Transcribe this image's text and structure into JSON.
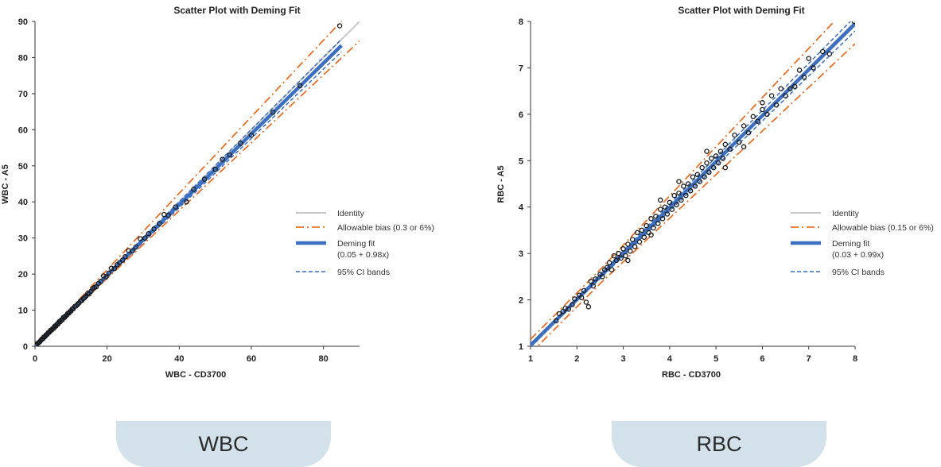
{
  "chart_data": [
    {
      "type": "scatter",
      "title": "Scatter Plot with Deming Fit",
      "xlabel": "WBC   - CD3700",
      "ylabel": "WBC   - A5",
      "xlim": [
        0,
        90
      ],
      "ylim": [
        0,
        90
      ],
      "xticks": [
        0,
        20,
        40,
        60,
        80
      ],
      "yticks": [
        0,
        10,
        20,
        30,
        40,
        50,
        60,
        70,
        80,
        90
      ],
      "grid": false,
      "legend_position": "right",
      "legend": [
        {
          "label": "Identity",
          "style": "solid",
          "color": "#c8c8c8"
        },
        {
          "label": "Allowable bias (0.3 or 6%)",
          "style": "dashdot",
          "color": "#e8702a"
        },
        {
          "label": "Deming fit",
          "label2": "(0.05 + 0.98x)",
          "style": "thick",
          "color": "#3d6fc0"
        },
        {
          "label": "95% CI bands",
          "style": "dashed",
          "color": "#3d6fc0"
        }
      ],
      "deming": {
        "intercept": 0.05,
        "slope": 0.98,
        "x_range": [
          0,
          85
        ]
      },
      "allowable_bias": {
        "abs": 0.3,
        "pct": 0.06
      },
      "points": [
        [
          0.4,
          0.3
        ],
        [
          0.7,
          0.8
        ],
        [
          1.0,
          1.0
        ],
        [
          1.3,
          1.2
        ],
        [
          1.6,
          1.6
        ],
        [
          1.9,
          2.0
        ],
        [
          2.2,
          2.1
        ],
        [
          2.5,
          2.6
        ],
        [
          2.8,
          2.7
        ],
        [
          3.1,
          3.2
        ],
        [
          3.4,
          3.3
        ],
        [
          3.7,
          3.8
        ],
        [
          4.0,
          3.9
        ],
        [
          4.3,
          4.4
        ],
        [
          4.6,
          4.5
        ],
        [
          4.9,
          4.9
        ],
        [
          5.2,
          5.0
        ],
        [
          5.5,
          5.6
        ],
        [
          5.8,
          5.6
        ],
        [
          6.1,
          6.1
        ],
        [
          6.4,
          6.2
        ],
        [
          6.7,
          6.8
        ],
        [
          7.0,
          6.8
        ],
        [
          7.3,
          7.3
        ],
        [
          7.6,
          7.4
        ],
        [
          7.9,
          8.0
        ],
        [
          8.2,
          8.0
        ],
        [
          8.5,
          8.4
        ],
        [
          8.8,
          8.6
        ],
        [
          9.1,
          9.1
        ],
        [
          9.4,
          9.2
        ],
        [
          9.7,
          9.6
        ],
        [
          10.0,
          9.8
        ],
        [
          10.3,
          10.3
        ],
        [
          10.6,
          10.4
        ],
        [
          11.0,
          11.0
        ],
        [
          11.4,
          11.2
        ],
        [
          11.8,
          11.6
        ],
        [
          12.2,
          12.0
        ],
        [
          12.6,
          12.5
        ],
        [
          13.0,
          12.7
        ],
        [
          13.4,
          13.2
        ],
        [
          13.8,
          13.5
        ],
        [
          14.2,
          14.0
        ],
        [
          14.6,
          14.6
        ],
        [
          15.0,
          14.5
        ],
        [
          15.5,
          15.2
        ],
        [
          16.0,
          15.9
        ],
        [
          16.5,
          16.3
        ],
        [
          17.0,
          16.5
        ],
        [
          17.6,
          17.4
        ],
        [
          18.3,
          18.0
        ],
        [
          19.0,
          19.5
        ],
        [
          19.7,
          19.2
        ],
        [
          20.5,
          20.3
        ],
        [
          21.2,
          21.6
        ],
        [
          22.0,
          21.5
        ],
        [
          22.8,
          22.6
        ],
        [
          23.5,
          23.2
        ],
        [
          24.3,
          23.9
        ],
        [
          25.0,
          24.8
        ],
        [
          26.0,
          26.5
        ],
        [
          27.0,
          26.4
        ],
        [
          28.0,
          27.5
        ],
        [
          29.2,
          29.8
        ],
        [
          30.5,
          30.0
        ],
        [
          31.5,
          31.2
        ],
        [
          33.0,
          32.5
        ],
        [
          34.5,
          34.0
        ],
        [
          35.8,
          36.5
        ],
        [
          37.0,
          36.3
        ],
        [
          39.0,
          38.6
        ],
        [
          42.0,
          40.0
        ],
        [
          44.0,
          43.5
        ],
        [
          47.0,
          46.3
        ],
        [
          50.0,
          49.0
        ],
        [
          52.0,
          51.8
        ],
        [
          54.0,
          53.0
        ],
        [
          57.0,
          56.2
        ],
        [
          60.0,
          58.5
        ],
        [
          66.0,
          64.8
        ],
        [
          73.5,
          72.2
        ],
        [
          84.5,
          88.8
        ]
      ]
    },
    {
      "type": "scatter",
      "title": "Scatter Plot with Deming Fit",
      "xlabel": "RBC   - CD3700",
      "ylabel": "RBC   - A5",
      "xlim": [
        1,
        8
      ],
      "ylim": [
        1,
        8
      ],
      "xticks": [
        1,
        2,
        3,
        4,
        5,
        6,
        7,
        8
      ],
      "yticks": [
        1,
        2,
        3,
        4,
        5,
        6,
        7,
        8
      ],
      "grid": false,
      "legend_position": "right",
      "legend": [
        {
          "label": "Identity",
          "style": "solid",
          "color": "#c8c8c8"
        },
        {
          "label": "Allowable bias (0.15 or 6%)",
          "style": "dashdot",
          "color": "#e8702a"
        },
        {
          "label": "Deming fit",
          "label2": "(0.03 + 0.99x)",
          "style": "thick",
          "color": "#3d6fc0"
        },
        {
          "label": "95% CI bands",
          "style": "dashed",
          "color": "#3d6fc0"
        }
      ],
      "deming": {
        "intercept": 0.03,
        "slope": 0.99,
        "x_range": [
          1.0,
          8.0
        ]
      },
      "allowable_bias": {
        "abs": 0.15,
        "pct": 0.06
      },
      "points": [
        [
          1.55,
          1.55
        ],
        [
          1.62,
          1.7
        ],
        [
          1.7,
          1.75
        ],
        [
          1.75,
          1.82
        ],
        [
          1.82,
          1.8
        ],
        [
          1.9,
          1.9
        ],
        [
          1.95,
          2.02
        ],
        [
          2.05,
          2.1
        ],
        [
          2.1,
          2.05
        ],
        [
          2.15,
          2.2
        ],
        [
          2.2,
          1.95
        ],
        [
          2.25,
          1.85
        ],
        [
          2.3,
          2.4
        ],
        [
          2.4,
          2.45
        ],
        [
          2.5,
          2.55
        ],
        [
          2.55,
          2.5
        ],
        [
          2.6,
          2.65
        ],
        [
          2.65,
          2.7
        ],
        [
          2.7,
          2.8
        ],
        [
          2.75,
          2.65
        ],
        [
          2.8,
          2.95
        ],
        [
          2.85,
          2.85
        ],
        [
          2.9,
          3.0
        ],
        [
          2.95,
          2.9
        ],
        [
          3.0,
          3.1
        ],
        [
          3.05,
          2.95
        ],
        [
          3.1,
          3.2
        ],
        [
          3.15,
          3.05
        ],
        [
          3.2,
          3.3
        ],
        [
          3.25,
          3.15
        ],
        [
          3.3,
          3.45
        ],
        [
          3.35,
          3.25
        ],
        [
          3.4,
          3.5
        ],
        [
          3.45,
          3.35
        ],
        [
          3.5,
          3.6
        ],
        [
          3.55,
          3.45
        ],
        [
          3.6,
          3.75
        ],
        [
          3.65,
          3.55
        ],
        [
          3.7,
          3.8
        ],
        [
          3.75,
          3.65
        ],
        [
          3.8,
          3.95
        ],
        [
          3.85,
          3.75
        ],
        [
          3.9,
          4.0
        ],
        [
          3.95,
          3.85
        ],
        [
          4.0,
          4.1
        ],
        [
          4.05,
          3.95
        ],
        [
          4.1,
          4.25
        ],
        [
          4.15,
          4.05
        ],
        [
          4.2,
          4.3
        ],
        [
          4.25,
          4.15
        ],
        [
          4.3,
          4.45
        ],
        [
          4.35,
          4.25
        ],
        [
          4.4,
          4.5
        ],
        [
          4.45,
          4.35
        ],
        [
          4.5,
          4.65
        ],
        [
          4.55,
          4.45
        ],
        [
          4.6,
          4.7
        ],
        [
          4.65,
          4.55
        ],
        [
          4.7,
          4.85
        ],
        [
          4.75,
          4.65
        ],
        [
          4.8,
          4.95
        ],
        [
          4.85,
          4.75
        ],
        [
          4.9,
          5.05
        ],
        [
          4.95,
          4.85
        ],
        [
          5.0,
          5.1
        ],
        [
          5.05,
          4.95
        ],
        [
          5.1,
          5.2
        ],
        [
          5.15,
          5.05
        ],
        [
          5.2,
          5.35
        ],
        [
          5.3,
          5.25
        ],
        [
          5.4,
          5.55
        ],
        [
          5.5,
          5.4
        ],
        [
          5.6,
          5.75
        ],
        [
          5.7,
          5.6
        ],
        [
          5.8,
          5.95
        ],
        [
          5.9,
          5.85
        ],
        [
          6.0,
          6.1
        ],
        [
          6.1,
          6.0
        ],
        [
          6.2,
          6.4
        ],
        [
          6.3,
          6.2
        ],
        [
          6.4,
          6.55
        ],
        [
          6.5,
          6.4
        ],
        [
          6.6,
          6.55
        ],
        [
          6.7,
          6.6
        ],
        [
          6.8,
          6.95
        ],
        [
          6.9,
          6.8
        ],
        [
          7.0,
          7.2
        ],
        [
          7.1,
          7.0
        ],
        [
          7.3,
          7.35
        ],
        [
          7.45,
          7.3
        ],
        [
          7.98,
          8.0
        ],
        [
          2.35,
          2.3
        ],
        [
          3.1,
          2.85
        ],
        [
          3.6,
          3.4
        ],
        [
          4.2,
          4.55
        ],
        [
          4.8,
          5.2
        ],
        [
          5.2,
          4.85
        ],
        [
          5.6,
          5.3
        ],
        [
          6.0,
          6.25
        ],
        [
          3.8,
          4.15
        ]
      ]
    }
  ],
  "tabs": [
    {
      "label": "WBC"
    },
    {
      "label": "RBC"
    }
  ]
}
